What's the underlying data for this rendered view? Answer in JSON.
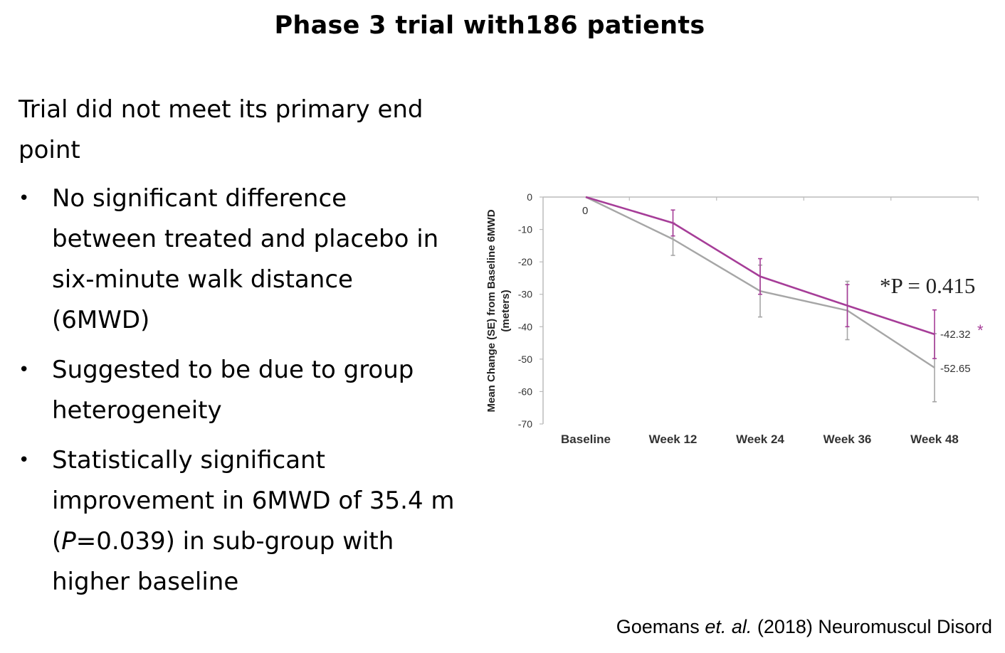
{
  "slide": {
    "title": "Phase 3 trial with186 patients",
    "intro": "Trial did not meet its primary end point",
    "bullets": [
      {
        "text": "No significant difference between treated and placebo in six-minute walk distance (6MWD)"
      },
      {
        "text": "Suggested to be due to group heterogeneity"
      },
      {
        "pre": "Statistically significant improvement in 6MWD of 35.4 m (",
        "ital": "P",
        "post": "=0.039) in sub-group with higher baseline"
      }
    ],
    "citation": {
      "author": "Goemans ",
      "etal": "et. al.",
      "rest": " (2018) Neuromuscul Disord"
    }
  },
  "chart_data": {
    "type": "line",
    "categories": [
      "Baseline",
      "Week 12",
      "Week 24",
      "Week 36",
      "Week 48"
    ],
    "ylabel": "Mean Change (SE) from Baseline 6MWD (meters)",
    "ylabel_lines": [
      "Mean Change (SE) from Baseline 6MWD",
      "(meters)"
    ],
    "ylim": [
      -70,
      0
    ],
    "yticks": [
      0,
      -10,
      -20,
      -30,
      -40,
      -50,
      -60,
      -70
    ],
    "grid": false,
    "series": [
      {
        "color": "#a63d98",
        "values": [
          0,
          -8,
          -24.5,
          -33.5,
          -42.32
        ],
        "se": [
          0,
          4,
          5.5,
          6.5,
          7.5
        ]
      },
      {
        "color": "#a6a6a6",
        "values": [
          0,
          -13,
          -29,
          -35,
          -52.65
        ],
        "se": [
          0,
          5,
          8,
          9,
          10.5
        ]
      }
    ],
    "annotations": {
      "zero_label": "0",
      "gray_end_label": "-52.65",
      "purple_end_label": "-42.32",
      "purple_star": "*",
      "pvalue_text": "*P = 0.415"
    }
  }
}
